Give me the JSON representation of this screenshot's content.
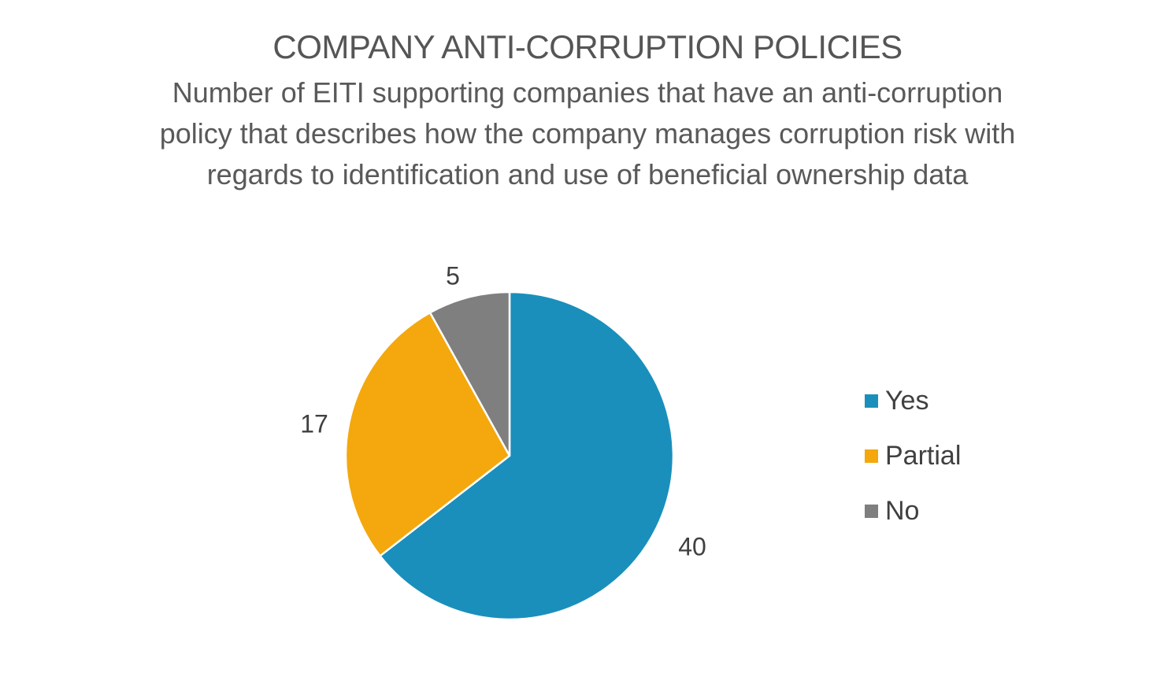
{
  "chart_data": {
    "type": "pie",
    "title": "COMPANY ANTI-CORRUPTION POLICIES",
    "subtitle": "Number of EITI supporting companies that have an anti-corruption policy that describes how the company manages corruption risk with regards to identification and use of beneficial ownership data",
    "categories": [
      "Yes",
      "Partial",
      "No"
    ],
    "values": [
      40,
      17,
      5
    ],
    "colors": [
      "#1a8fbc",
      "#f4a80d",
      "#7f7f7f"
    ],
    "data_labels": [
      "40",
      "17",
      "5"
    ],
    "legend_position": "right"
  }
}
